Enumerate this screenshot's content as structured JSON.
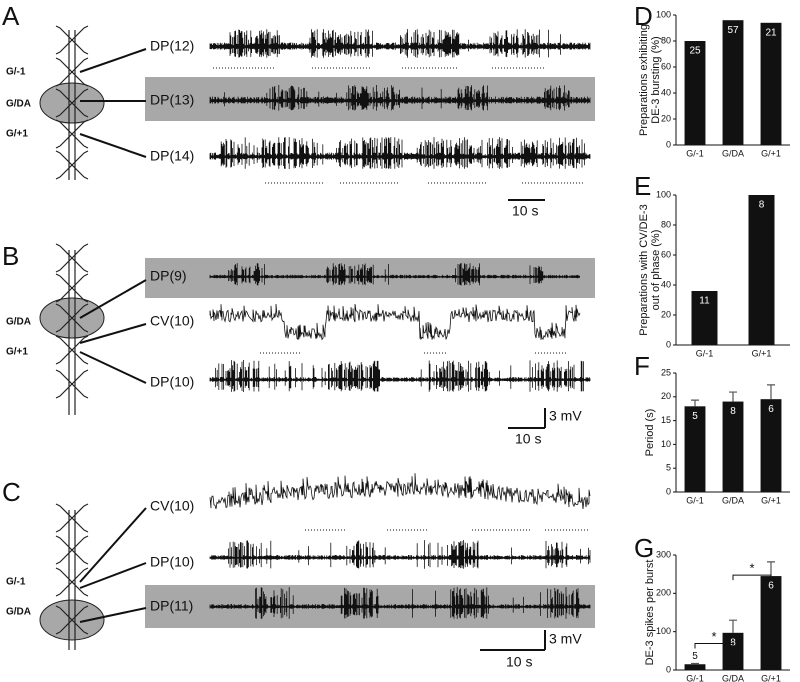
{
  "panel_labels": [
    "A",
    "B",
    "C",
    "D",
    "E",
    "F",
    "G"
  ],
  "panel_a": {
    "ganglia": [
      "G/-1",
      "G/DA",
      "G/+1"
    ],
    "traces": [
      "DP(12)",
      "DP(13)",
      "DP(14)"
    ],
    "scale_time": "10 s"
  },
  "panel_b": {
    "ganglia": [
      "G/DA",
      "G/+1"
    ],
    "traces": [
      "DP(9)",
      "CV(10)",
      "DP(10)"
    ],
    "scale_voltage": "3 mV",
    "scale_time": "10 s"
  },
  "panel_c": {
    "ganglia": [
      "G/-1",
      "G/DA"
    ],
    "traces": [
      "CV(10)",
      "DP(10)",
      "DP(11)"
    ],
    "scale_voltage": "3 mV",
    "scale_time": "10 s"
  },
  "chart_data": [
    {
      "type": "bar",
      "ylabel": [
        "Preparations exhibiting",
        "DE-3 bursting (%)"
      ],
      "categories": [
        "G/-1",
        "G/DA",
        "G/+1"
      ],
      "values": [
        80,
        96,
        94
      ],
      "n_labels": [
        25,
        57,
        21
      ],
      "ylim": [
        0,
        100
      ],
      "yticks": [
        0,
        20,
        40,
        60,
        80,
        100
      ],
      "color": "#111111"
    },
    {
      "type": "bar",
      "ylabel": [
        "Preparations with CV/DE-3",
        "out of phase (%)"
      ],
      "categories": [
        "G/-1",
        "G/+1"
      ],
      "values": [
        36,
        100
      ],
      "n_labels": [
        11,
        8
      ],
      "ylim": [
        0,
        100
      ],
      "yticks": [
        0,
        20,
        40,
        60,
        80,
        100
      ],
      "color": "#111111"
    },
    {
      "type": "bar",
      "ylabel": [
        "Period (s)"
      ],
      "categories": [
        "G/-1",
        "G/DA",
        "G/+1"
      ],
      "values": [
        18,
        19,
        19.5
      ],
      "errors": [
        1.3,
        2,
        3
      ],
      "n_labels": [
        5,
        8,
        6
      ],
      "ylim": [
        0,
        25
      ],
      "yticks": [
        0,
        5,
        10,
        15,
        20,
        25
      ],
      "color": "#111111"
    },
    {
      "type": "bar",
      "ylabel": [
        "DE-3 spikes per burst"
      ],
      "categories": [
        "G/-1",
        "G/DA",
        "G/+1"
      ],
      "values": [
        15,
        97,
        245
      ],
      "errors": [
        2,
        33,
        37
      ],
      "n_labels": [
        5,
        8,
        6
      ],
      "significance_labels": [
        "*",
        "*"
      ],
      "ylim": [
        0,
        300
      ],
      "yticks": [
        0,
        100,
        200,
        300
      ],
      "color": "#111111"
    }
  ]
}
